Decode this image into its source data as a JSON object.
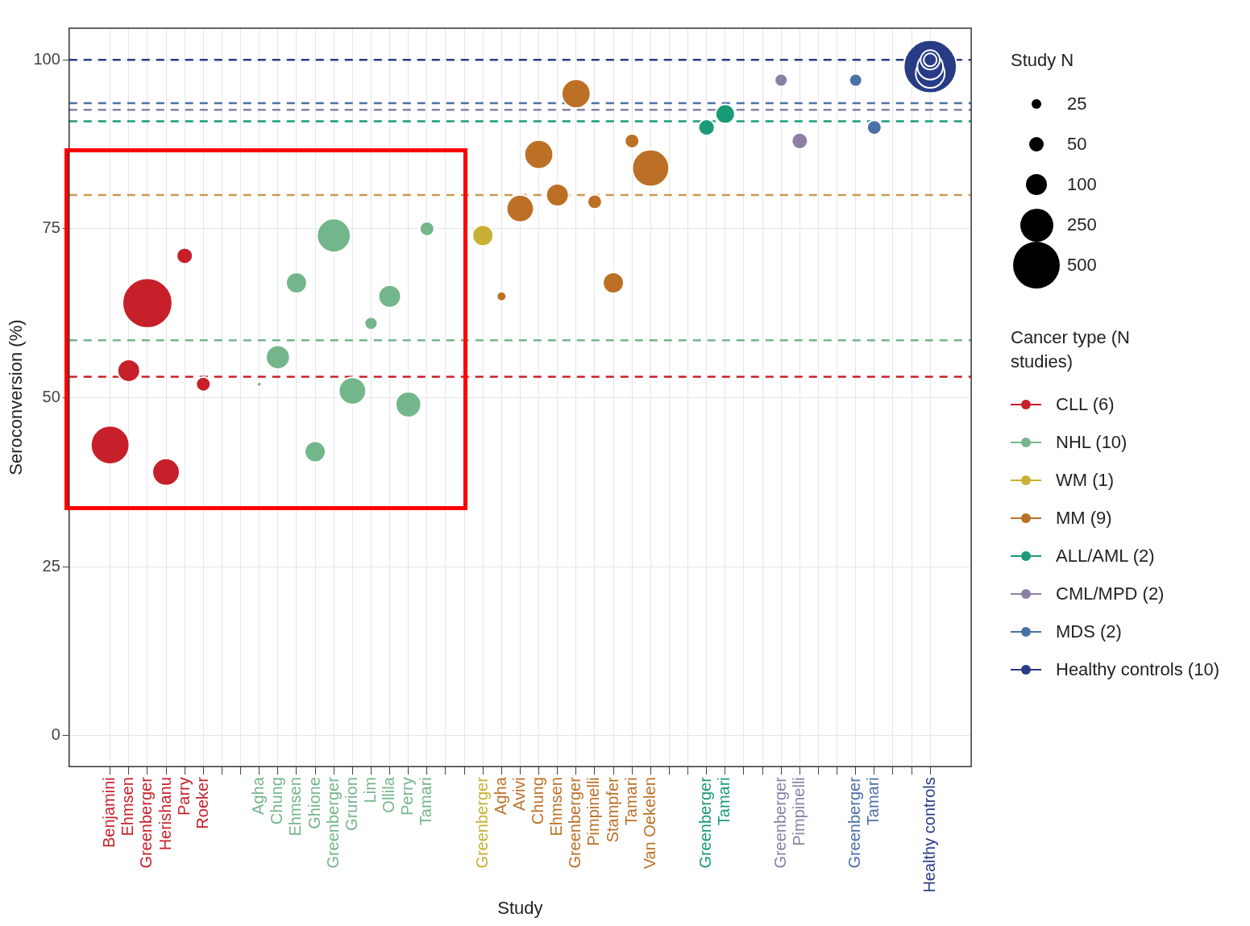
{
  "chart_data": {
    "type": "bubble",
    "xlabel": "Study",
    "ylabel": "Seroconversion (%)",
    "legend_title": [
      "Study N",
      "Cancer type (N studies)"
    ],
    "categories": [
      "Benjamini",
      "Ehmsen",
      "Greenberger",
      "Herishanu",
      "Parry",
      "Roeker",
      null,
      null,
      "Agha",
      "Chung",
      "Ehmsen",
      "Ghione",
      "Greenberger",
      "Grurion",
      "Lim",
      "Ollila",
      "Perry",
      "Tamari",
      null,
      null,
      "Greenberger",
      "Agha",
      "Avivi",
      "Chung",
      "Ehmsen",
      "Greenberger",
      "Pimpinelli",
      "Stampfer",
      "Tamari",
      "Van Oekelen",
      null,
      null,
      "Greenberger",
      "Tamari",
      null,
      null,
      "Greenberger",
      "Pimpinelli",
      null,
      null,
      "Greenberger",
      "Tamari",
      null,
      null,
      "Healthy controls"
    ],
    "series": [
      {
        "name": "CLL (6)",
        "color": "#c8202a",
        "values": [
          43,
          54,
          64,
          39,
          71,
          52,
          null,
          null,
          null,
          null,
          null,
          null,
          null,
          null,
          null,
          null,
          null,
          null,
          null,
          null,
          null,
          null,
          null,
          null,
          null,
          null,
          null,
          null,
          null,
          null,
          null,
          null,
          null,
          null,
          null,
          null,
          null,
          null,
          null,
          null,
          null,
          null,
          null,
          null,
          null
        ],
        "sizes": [
          340,
          116,
          570,
          170,
          60,
          48,
          null,
          null,
          null,
          null,
          null,
          null,
          null,
          null,
          null,
          null,
          null,
          null,
          null,
          null,
          null,
          null,
          null,
          null,
          null,
          null,
          null,
          null,
          null,
          null,
          null,
          null,
          null,
          null,
          null,
          null,
          null,
          null,
          null,
          null,
          null,
          null,
          null,
          null,
          null
        ]
      },
      {
        "name": "NHL (10)",
        "color": "#74b68b",
        "values": [
          null,
          null,
          null,
          null,
          null,
          null,
          null,
          null,
          52,
          56,
          67,
          42,
          74,
          51,
          61,
          65,
          49,
          75,
          null,
          null,
          null,
          null,
          null,
          null,
          null,
          null,
          null,
          null,
          null,
          null,
          null,
          null,
          null,
          null,
          null,
          null,
          null,
          null,
          null,
          null,
          null,
          null,
          null,
          null,
          null
        ],
        "sizes": [
          null,
          null,
          null,
          null,
          null,
          null,
          null,
          null,
          5,
          130,
          100,
          100,
          260,
          170,
          38,
          116,
          150,
          48,
          null,
          null,
          null,
          null,
          null,
          null,
          null,
          null,
          null,
          null,
          null,
          null,
          null,
          null,
          null,
          null,
          null,
          null,
          null,
          null,
          null,
          null,
          null,
          null,
          null,
          null,
          null
        ]
      },
      {
        "name": "WM (1)",
        "color": "#c8b034",
        "values": [
          null,
          null,
          null,
          null,
          null,
          null,
          null,
          null,
          null,
          null,
          null,
          null,
          null,
          null,
          null,
          null,
          null,
          null,
          null,
          null,
          74,
          null,
          null,
          null,
          null,
          null,
          null,
          null,
          null,
          null,
          null,
          null,
          null,
          null,
          null,
          null,
          null,
          null,
          null,
          null,
          null,
          null,
          null,
          null,
          null
        ],
        "sizes": [
          null,
          null,
          null,
          null,
          null,
          null,
          null,
          null,
          null,
          null,
          null,
          null,
          null,
          null,
          null,
          null,
          null,
          null,
          null,
          null,
          100,
          null,
          null,
          null,
          null,
          null,
          null,
          null,
          null,
          null,
          null,
          null,
          null,
          null,
          null,
          null,
          null,
          null,
          null,
          null,
          null,
          null,
          null,
          null,
          null
        ]
      },
      {
        "name": "MM (9)",
        "color": "#bc7026",
        "values": [
          null,
          null,
          null,
          null,
          null,
          null,
          null,
          null,
          null,
          null,
          null,
          null,
          null,
          null,
          null,
          null,
          null,
          null,
          null,
          null,
          null,
          65,
          78,
          86,
          80,
          95,
          79,
          67,
          88,
          84,
          null,
          null,
          null,
          null,
          null,
          null,
          null,
          null,
          null,
          null,
          null,
          null,
          null,
          null,
          null
        ],
        "sizes": [
          null,
          null,
          null,
          null,
          null,
          null,
          null,
          null,
          null,
          null,
          null,
          null,
          null,
          null,
          null,
          null,
          null,
          null,
          null,
          null,
          null,
          21,
          170,
          190,
          116,
          190,
          48,
          100,
          48,
          313,
          null,
          null,
          null,
          null,
          null,
          null,
          null,
          null,
          null,
          null,
          null,
          null,
          null,
          null,
          null
        ]
      },
      {
        "name": "ALL/AML (2)",
        "color": "#1b9a78",
        "values": [
          null,
          null,
          null,
          null,
          null,
          null,
          null,
          null,
          null,
          null,
          null,
          null,
          null,
          null,
          null,
          null,
          null,
          null,
          null,
          null,
          null,
          null,
          null,
          null,
          null,
          null,
          null,
          null,
          null,
          null,
          null,
          null,
          90,
          92,
          null,
          null,
          null,
          null,
          null,
          null,
          null,
          null,
          null,
          null,
          null
        ],
        "sizes": [
          null,
          null,
          null,
          null,
          null,
          null,
          null,
          null,
          null,
          null,
          null,
          null,
          null,
          null,
          null,
          null,
          null,
          null,
          null,
          null,
          null,
          null,
          null,
          null,
          null,
          null,
          null,
          null,
          null,
          null,
          null,
          null,
          60,
          85,
          null,
          null,
          null,
          null,
          null,
          null,
          null,
          null,
          null,
          null,
          null
        ]
      },
      {
        "name": "CML/MPD (2)",
        "color": "#8c7fa6",
        "values": [
          null,
          null,
          null,
          null,
          null,
          null,
          null,
          null,
          null,
          null,
          null,
          null,
          null,
          null,
          null,
          null,
          null,
          null,
          null,
          null,
          null,
          null,
          null,
          null,
          null,
          null,
          null,
          null,
          null,
          null,
          null,
          null,
          null,
          null,
          null,
          null,
          97,
          88,
          null,
          null,
          null,
          null,
          null,
          null,
          null
        ],
        "sizes": [
          null,
          null,
          null,
          null,
          null,
          null,
          null,
          null,
          null,
          null,
          null,
          null,
          null,
          null,
          null,
          null,
          null,
          null,
          null,
          null,
          null,
          null,
          null,
          null,
          null,
          null,
          null,
          null,
          null,
          null,
          null,
          null,
          null,
          null,
          null,
          null,
          38,
          60,
          null,
          null,
          null,
          null,
          null,
          null,
          null
        ]
      },
      {
        "name": "MDS (2)",
        "color": "#4b72a6",
        "values": [
          null,
          null,
          null,
          null,
          null,
          null,
          null,
          null,
          null,
          null,
          null,
          null,
          null,
          null,
          null,
          null,
          null,
          null,
          null,
          null,
          null,
          null,
          null,
          null,
          null,
          null,
          null,
          null,
          null,
          null,
          null,
          null,
          null,
          null,
          null,
          null,
          null,
          null,
          null,
          null,
          97,
          90,
          null,
          null,
          null
        ],
        "sizes": [
          null,
          null,
          null,
          null,
          null,
          null,
          null,
          null,
          null,
          null,
          null,
          null,
          null,
          null,
          null,
          null,
          null,
          null,
          null,
          null,
          null,
          null,
          null,
          null,
          null,
          null,
          null,
          null,
          null,
          null,
          null,
          null,
          null,
          null,
          null,
          null,
          null,
          null,
          null,
          null,
          38,
          48,
          null,
          null,
          null
        ]
      },
      {
        "name": "Healthy controls (10)",
        "color": "#283c86",
        "x": [
          "Healthy controls",
          "Healthy controls",
          "Healthy controls",
          "Healthy controls",
          "Healthy controls"
        ],
        "values": [
          100,
          100,
          99,
          98,
          99
        ],
        "sizes": [
          38,
          85,
          151,
          192,
          644
        ]
      }
    ],
    "size_legend": [
      25,
      50,
      100,
      250,
      500
    ],
    "ylim": [
      -4.6,
      104.7
    ],
    "yticks": [
      0,
      25,
      50,
      75,
      100
    ],
    "grid": true,
    "legend": "right",
    "ref_lines": [
      {
        "axis": "y",
        "value": 53.1,
        "color": "#c8202a",
        "line_style": "dashed"
      },
      {
        "axis": "y",
        "value": 58.5,
        "color": "#74b68b",
        "line_style": "dashed"
      },
      {
        "axis": "y",
        "value": 80,
        "color": "#c89a50",
        "line_style": "dashed"
      },
      {
        "axis": "y",
        "value": 90.9,
        "color": "#1b9a78",
        "line_style": "dashed"
      },
      {
        "axis": "y",
        "value": 92.6,
        "color": "#8c7fa6",
        "line_style": "dashed"
      },
      {
        "axis": "y",
        "value": 93.6,
        "color": "#4b72a6",
        "line_style": "dashed"
      },
      {
        "axis": "y",
        "value": 100,
        "color": "#283c86",
        "line_style": "dashed"
      }
    ]
  }
}
